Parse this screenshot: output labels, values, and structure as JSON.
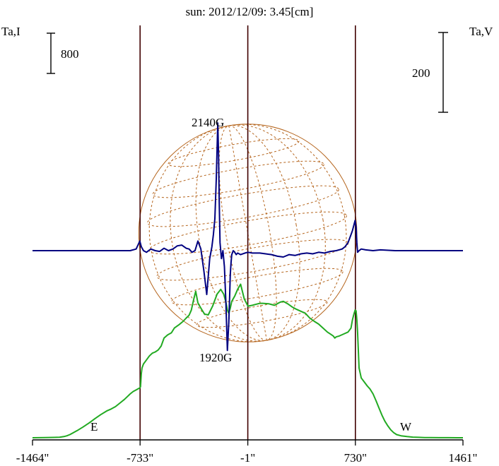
{
  "chart_data": {
    "type": "line",
    "title": "sun: 2012/12/09: 3.45[cm]",
    "left_axis_label": "Ta,I",
    "right_axis_label": "Ta,V",
    "left_scale_bar": "800",
    "right_scale_bar": "200",
    "xlim": [
      -1464,
      1461
    ],
    "x_tick_labels": [
      "-1464\"",
      "-733\"",
      "-1\"",
      "730\"",
      "1461\""
    ],
    "x_tick_values": [
      -1464,
      -733,
      -1,
      730,
      1461
    ],
    "vertical_lines_x": [
      -733,
      -1,
      730
    ],
    "limb_labels": {
      "east": "E",
      "west": "W"
    },
    "annotations": [
      {
        "text": "2140G",
        "x": -180,
        "y": 0.73
      },
      {
        "text": "1920G",
        "x": -140,
        "y": 0.12
      }
    ],
    "colors": {
      "intensity": "#22aa22",
      "polarization": "#000080",
      "disk_grid": "#b5651d",
      "vertical_lines": "#400000",
      "title": "#000066"
    },
    "series": [
      {
        "name": "Ta,I",
        "color": "#22aa22",
        "x": [
          -1464,
          -1380,
          -1320,
          -1280,
          -1250,
          -1230,
          -1210,
          -1190,
          -1160,
          -1120,
          -1080,
          -1040,
          -1000,
          -960,
          -930,
          -900,
          -880,
          -860,
          -840,
          -820,
          -800,
          -780,
          -760,
          -745,
          -735,
          -730,
          -725,
          -720,
          -710,
          -690,
          -670,
          -650,
          -630,
          -610,
          -590,
          -570,
          -545,
          -520,
          -500,
          -470,
          -440,
          -420,
          -400,
          -385,
          -370,
          -355,
          -340,
          -320,
          -295,
          -270,
          -240,
          -210,
          -185,
          -165,
          -150,
          -140,
          -130,
          -120,
          -110,
          -90,
          -70,
          -50,
          -25,
          0,
          30,
          60,
          80,
          100,
          140,
          180,
          220,
          240,
          270,
          300,
          330,
          360,
          390,
          420,
          450,
          480,
          510,
          540,
          560,
          580,
          590,
          600,
          620,
          650,
          680,
          700,
          710,
          720,
          728,
          735,
          740,
          745,
          755,
          770,
          790,
          810,
          830,
          850,
          870,
          890,
          910,
          930,
          950,
          970,
          990,
          1010,
          1040,
          1080,
          1120,
          1160,
          1200,
          1240,
          1300,
          1360,
          1420,
          1461
        ],
        "y": [
          0.0,
          0.003,
          0.008,
          0.015,
          0.03,
          0.05,
          0.08,
          0.12,
          0.18,
          0.27,
          0.37,
          0.48,
          0.58,
          0.67,
          0.72,
          0.78,
          0.84,
          0.9,
          0.96,
          1.03,
          1.1,
          1.16,
          1.2,
          1.23,
          1.25,
          1.28,
          1.6,
          1.75,
          1.85,
          1.95,
          2.05,
          2.12,
          2.15,
          2.2,
          2.3,
          2.5,
          2.58,
          2.63,
          2.75,
          2.83,
          2.92,
          3.0,
          3.07,
          3.2,
          3.45,
          3.67,
          3.38,
          3.25,
          3.1,
          3.08,
          3.3,
          3.6,
          3.72,
          3.6,
          3.4,
          3.2,
          3.12,
          3.25,
          3.42,
          3.55,
          3.72,
          3.85,
          3.48,
          3.3,
          3.32,
          3.35,
          3.37,
          3.37,
          3.36,
          3.32,
          3.4,
          3.42,
          3.36,
          3.28,
          3.22,
          3.17,
          3.12,
          3.0,
          2.92,
          2.85,
          2.75,
          2.65,
          2.6,
          2.55,
          2.5,
          2.53,
          2.55,
          2.6,
          2.65,
          2.75,
          2.95,
          3.1,
          3.2,
          3.18,
          2.95,
          2.65,
          1.75,
          1.5,
          1.4,
          1.3,
          1.22,
          1.1,
          0.93,
          0.75,
          0.57,
          0.42,
          0.3,
          0.2,
          0.13,
          0.08,
          0.05,
          0.03,
          0.016,
          0.01,
          0.006,
          0.004,
          0.002,
          0.001,
          0.0,
          0.0
        ]
      },
      {
        "name": "Ta,V",
        "color": "#000080",
        "x": [
          -1464,
          -1200,
          -1000,
          -900,
          -800,
          -760,
          -745,
          -735,
          -725,
          -710,
          -690,
          -660,
          -630,
          -600,
          -570,
          -540,
          -510,
          -480,
          -450,
          -420,
          -400,
          -380,
          -360,
          -340,
          -320,
          -300,
          -280,
          -260,
          -245,
          -235,
          -225,
          -215,
          -205,
          -200,
          -195,
          -190,
          -180,
          -170,
          -160,
          -150,
          -140,
          -130,
          -125,
          -120,
          -115,
          -110,
          -100,
          -90,
          -80,
          -70,
          -50,
          -20,
          0,
          30,
          80,
          120,
          160,
          200,
          240,
          280,
          320,
          360,
          400,
          440,
          480,
          520,
          560,
          600,
          640,
          660,
          680,
          700,
          710,
          720,
          728,
          735,
          740,
          745,
          755,
          770,
          800,
          850,
          900,
          1000,
          1100,
          1200,
          1300,
          1461
        ],
        "y": [
          0.0,
          0.0,
          0.0,
          0.0,
          0.0,
          0.02,
          0.08,
          0.12,
          0.05,
          0.0,
          -0.02,
          0.02,
          0.0,
          -0.01,
          0.03,
          0.0,
          0.02,
          0.06,
          0.07,
          0.03,
          0.02,
          -0.02,
          0.0,
          0.12,
          0.02,
          -0.25,
          -0.55,
          -0.1,
          0.05,
          0.2,
          0.4,
          0.9,
          1.6,
          1.22,
          0.6,
          0.1,
          -0.1,
          0.0,
          -0.2,
          -0.65,
          -1.25,
          -0.9,
          -0.6,
          -0.3,
          -0.15,
          -0.05,
          0.0,
          -0.02,
          -0.05,
          -0.03,
          -0.05,
          -0.03,
          -0.02,
          -0.03,
          -0.03,
          -0.04,
          -0.05,
          -0.07,
          -0.08,
          -0.05,
          -0.06,
          -0.04,
          -0.03,
          -0.04,
          -0.02,
          -0.03,
          -0.01,
          0.0,
          0.02,
          0.05,
          0.1,
          0.2,
          0.25,
          0.32,
          0.38,
          0.3,
          0.1,
          -0.02,
          0.0,
          0.02,
          0.01,
          0.0,
          0.01,
          0.0,
          0.0,
          0.0,
          0.0,
          0.0
        ]
      }
    ]
  }
}
